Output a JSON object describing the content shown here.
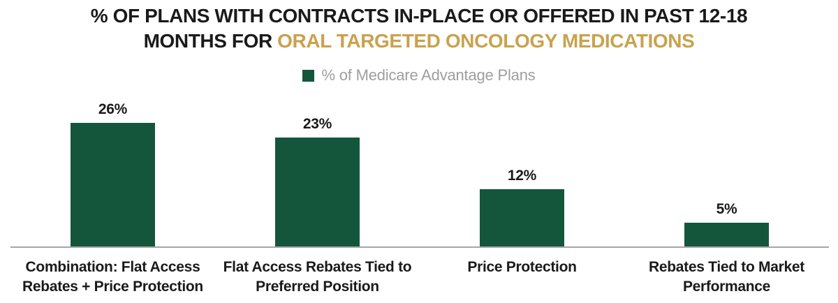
{
  "colors": {
    "bar_green": "#14563c",
    "accent_gold": "#c9a24e",
    "title_text": "#1a1a1a",
    "legend_text": "#9e9e9e",
    "axis_line": "#a6a6a6"
  },
  "title": {
    "line1": "% OF PLANS WITH CONTRACTS IN-PLACE OR OFFERED IN PAST 12-18",
    "line2_prefix": "MONTHS FOR ",
    "line2_highlight": "ORAL TARGETED ONCOLOGY MEDICATIONS"
  },
  "legend": {
    "label": "% of Medicare Advantage Plans"
  },
  "chart_data": {
    "type": "bar",
    "title": "% OF PLANS WITH CONTRACTS IN-PLACE OR OFFERED IN PAST 12-18 MONTHS FOR ORAL TARGETED ONCOLOGY MEDICATIONS",
    "legend": [
      "% of Medicare Advantage Plans"
    ],
    "legend_position": "top",
    "categories": [
      "Combination: Flat Access Rebates + Price Protection",
      "Flat Access Rebates Tied to Preferred Position",
      "Price Protection",
      "Rebates Tied to Market Performance"
    ],
    "category_lines": [
      [
        "Combination: Flat Access",
        "Rebates + Price Protection"
      ],
      [
        "Flat Access Rebates Tied to",
        "Preferred Position"
      ],
      [
        "Price Protection"
      ],
      [
        "Rebates Tied to Market",
        "Performance"
      ]
    ],
    "values": [
      26,
      23,
      12,
      5
    ],
    "value_labels": [
      "26%",
      "23%",
      "12%",
      "5%"
    ],
    "xlabel": "",
    "ylabel": "",
    "ylim": [
      0,
      30
    ],
    "grid": false,
    "bar_color": "#14563c"
  }
}
